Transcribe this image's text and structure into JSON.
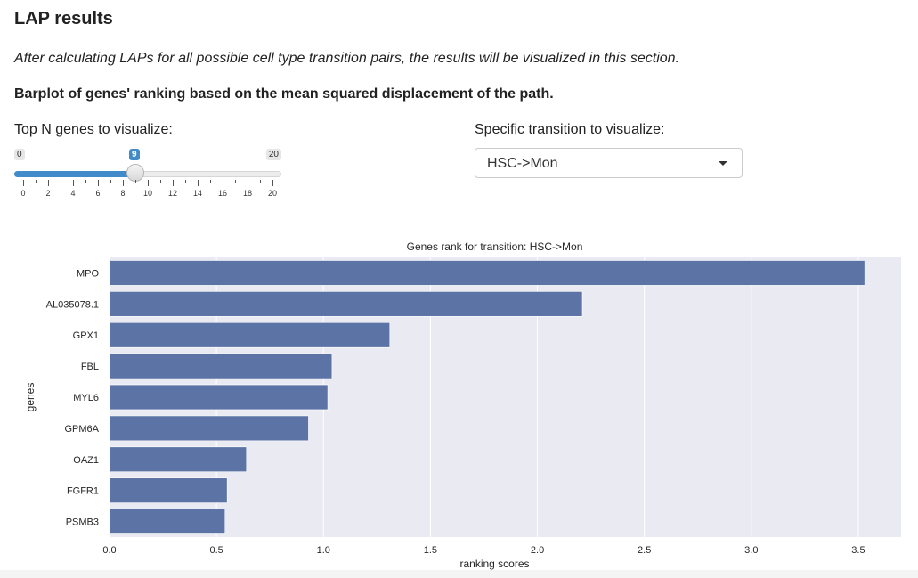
{
  "page": {
    "title": "LAP results",
    "intro": "After calculating LAPs for all possible cell type transition pairs, the results will be visualized in this section.",
    "section_title": "Barplot of genes' ranking based on the mean squared displacement of the path."
  },
  "controls": {
    "top_n": {
      "label": "Top N genes to visualize:",
      "min": 0,
      "max": 20,
      "value": 9,
      "min_label": "0",
      "max_label": "20",
      "value_label": "9",
      "tick_labels": [
        "0",
        "2",
        "4",
        "6",
        "8",
        "10",
        "12",
        "14",
        "16",
        "18",
        "20"
      ]
    },
    "transition": {
      "label": "Specific transition to visualize:",
      "selected": "HSC->Mon"
    }
  },
  "colors": {
    "bar": "#5b73a5",
    "plot_bg": "#eaeaf2",
    "slider_accent": "#428bca"
  },
  "chart_data": {
    "type": "bar",
    "orientation": "horizontal",
    "title": "Genes rank for transition: HSC->Mon",
    "xlabel": "ranking scores",
    "ylabel": "genes",
    "categories": [
      "MPO",
      "AL035078.1",
      "GPX1",
      "FBL",
      "MYL6",
      "GPM6A",
      "OAZ1",
      "FGFR1",
      "PSMB3"
    ],
    "values": [
      3.53,
      2.21,
      1.31,
      1.04,
      1.02,
      0.93,
      0.64,
      0.55,
      0.54
    ],
    "xlim": [
      0,
      3.7
    ],
    "xticks": [
      0.0,
      0.5,
      1.0,
      1.5,
      2.0,
      2.5,
      3.0,
      3.5
    ],
    "xtick_labels": [
      "0.0",
      "0.5",
      "1.0",
      "1.5",
      "2.0",
      "2.5",
      "3.0",
      "3.5"
    ],
    "grid": true
  }
}
